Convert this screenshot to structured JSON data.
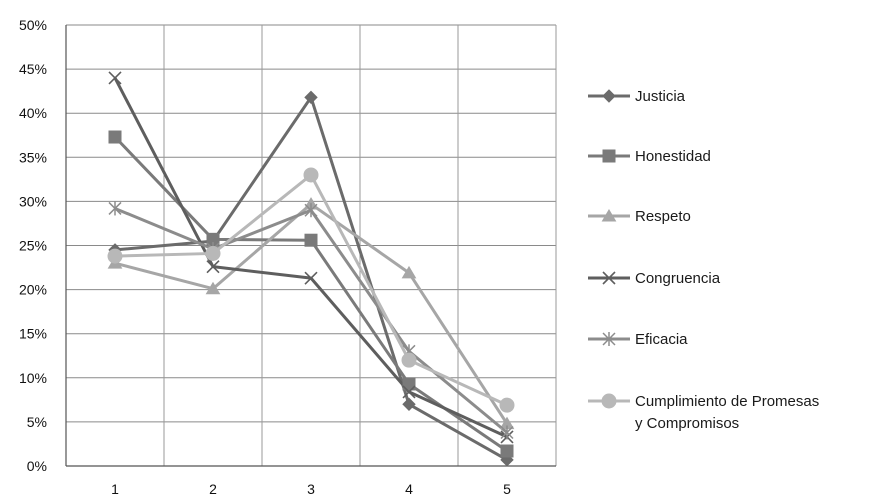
{
  "chart_data": {
    "type": "line",
    "title": "",
    "xlabel": "",
    "ylabel": "",
    "x": [
      "1",
      "2",
      "3",
      "4",
      "5"
    ],
    "ylim": [
      0,
      50
    ],
    "y_ticks": [
      0,
      5,
      10,
      15,
      20,
      25,
      30,
      35,
      40,
      45,
      50
    ],
    "y_tick_labels": [
      "0%",
      "5%",
      "10%",
      "15%",
      "20%",
      "25%",
      "30%",
      "35%",
      "40%",
      "45%",
      "50%"
    ],
    "grid": "horizontal",
    "legend_position": "right",
    "series": [
      {
        "name": "Justicia",
        "marker": "diamond",
        "color": "#6b6b6b",
        "values": [
          24.5,
          25.5,
          41.8,
          7.0,
          0.7
        ]
      },
      {
        "name": "Honestidad",
        "marker": "square",
        "color": "#7a7a7a",
        "values": [
          37.3,
          25.7,
          25.6,
          9.3,
          1.7
        ]
      },
      {
        "name": "Respeto",
        "marker": "triangle",
        "color": "#a6a6a6",
        "values": [
          23.0,
          20.1,
          29.7,
          21.9,
          4.8
        ]
      },
      {
        "name": "Congruencia",
        "marker": "x",
        "color": "#5e5e5e",
        "values": [
          44.0,
          22.6,
          21.3,
          8.4,
          3.3
        ]
      },
      {
        "name": "Eficacia",
        "marker": "asterisk",
        "color": "#8c8c8c",
        "values": [
          29.2,
          24.6,
          29.0,
          13.0,
          3.8
        ]
      },
      {
        "name": [
          "Cumplimiento de Promesas",
          "y Compromisos"
        ],
        "marker": "circle",
        "color": "#b8b8b8",
        "values": [
          23.8,
          24.1,
          33.0,
          12.0,
          6.9
        ]
      }
    ]
  }
}
